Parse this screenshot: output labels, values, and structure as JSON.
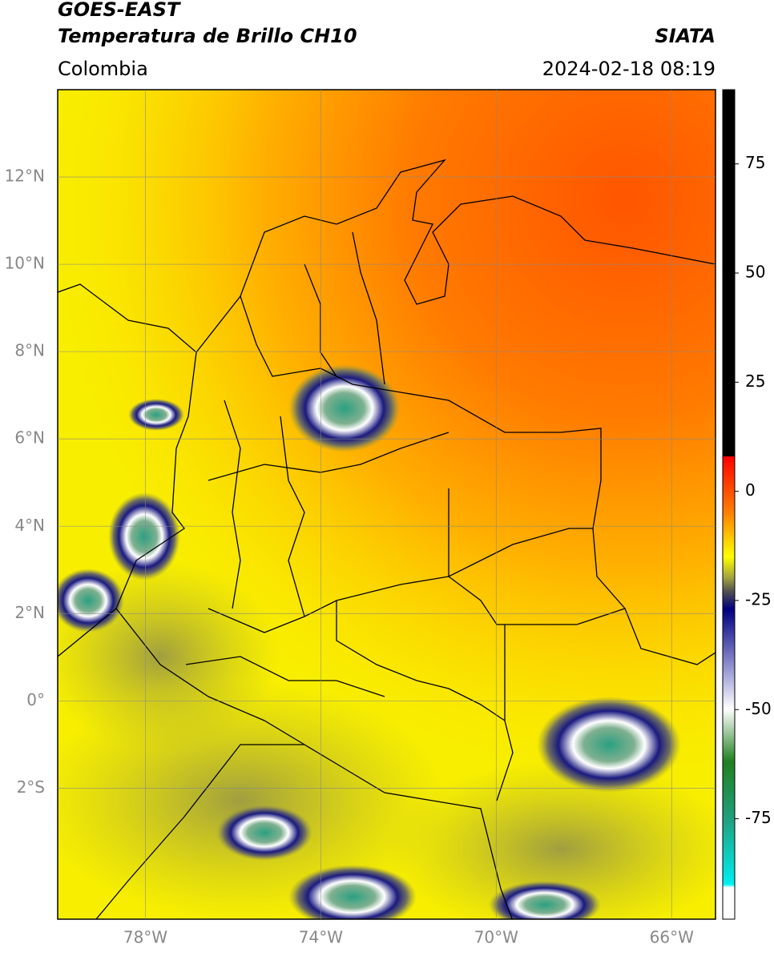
{
  "header": {
    "title": "GOES-EAST",
    "subtitle": "Temperatura de Brillo CH10",
    "region": "Colombia",
    "source": "SIATA",
    "timestamp": "2024-02-18 08:19"
  },
  "map": {
    "xlim": [
      -80,
      -65
    ],
    "ylim": [
      -5,
      14
    ],
    "xticks": [
      {
        "value": -78,
        "label": "78°W"
      },
      {
        "value": -74,
        "label": "74°W"
      },
      {
        "value": -70,
        "label": "70°W"
      },
      {
        "value": -66,
        "label": "66°W"
      }
    ],
    "yticks": [
      {
        "value": 12,
        "label": "12°N"
      },
      {
        "value": 10,
        "label": "10°N"
      },
      {
        "value": 8,
        "label": "8°N"
      },
      {
        "value": 6,
        "label": "6°N"
      },
      {
        "value": 4,
        "label": "4°N"
      },
      {
        "value": 2,
        "label": "2°N"
      },
      {
        "value": 0,
        "label": "0°"
      },
      {
        "value": -2,
        "label": "2°S"
      }
    ]
  },
  "colorbar": {
    "lim": [
      -98,
      92
    ],
    "ticks": [
      75,
      50,
      25,
      0,
      -25,
      -50,
      -75
    ]
  }
}
